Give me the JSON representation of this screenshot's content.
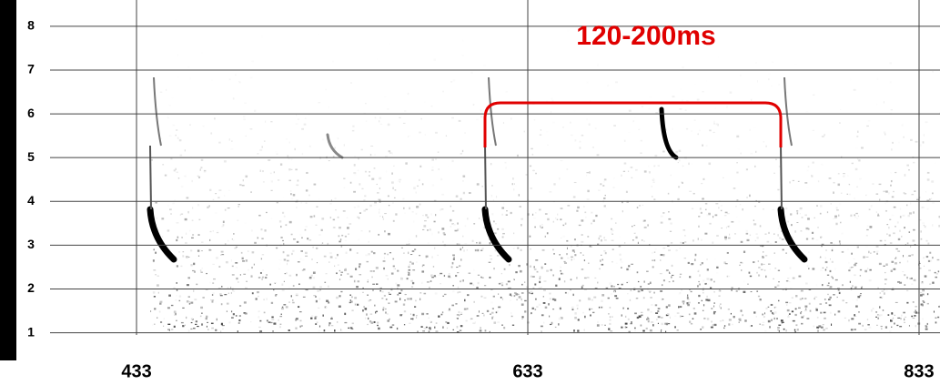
{
  "chart_data": {
    "type": "spectrogram",
    "annotation": "120-200ms",
    "xlim": [
      388.8,
      843.7
    ],
    "xticks": [
      433,
      633,
      833
    ],
    "ylim": [
      0.95,
      8.6
    ],
    "yticks": [
      1,
      2,
      3,
      4,
      5,
      6,
      7,
      8
    ],
    "grid": true,
    "color": "#e00000"
  }
}
